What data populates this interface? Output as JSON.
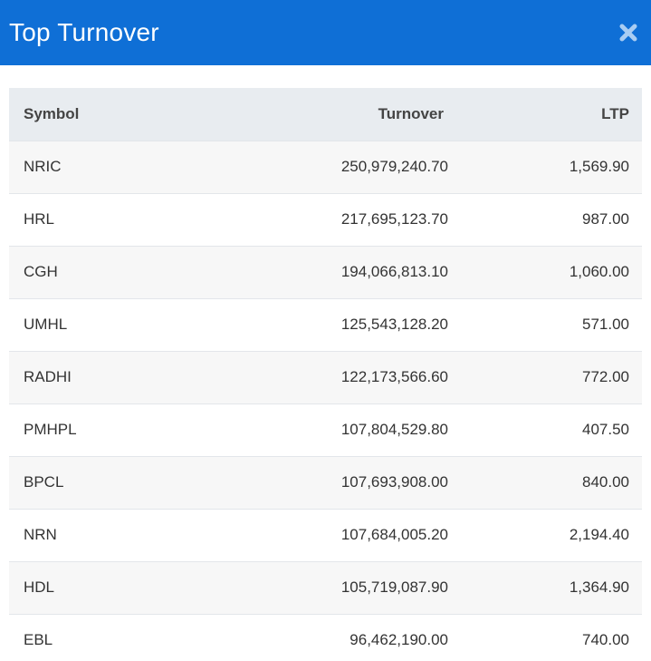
{
  "header": {
    "title": "Top Turnover",
    "close_icon": "close-icon"
  },
  "table": {
    "columns": [
      "Symbol",
      "Turnover",
      "LTP"
    ],
    "rows": [
      {
        "symbol": "NRIC",
        "turnover": "250,979,240.70",
        "ltp": "1,569.90"
      },
      {
        "symbol": "HRL",
        "turnover": "217,695,123.70",
        "ltp": "987.00"
      },
      {
        "symbol": "CGH",
        "turnover": "194,066,813.10",
        "ltp": "1,060.00"
      },
      {
        "symbol": "UMHL",
        "turnover": "125,543,128.20",
        "ltp": "571.00"
      },
      {
        "symbol": "RADHI",
        "turnover": "122,173,566.60",
        "ltp": "772.00"
      },
      {
        "symbol": "PMHPL",
        "turnover": "107,804,529.80",
        "ltp": "407.50"
      },
      {
        "symbol": "BPCL",
        "turnover": "107,693,908.00",
        "ltp": "840.00"
      },
      {
        "symbol": "NRN",
        "turnover": "107,684,005.20",
        "ltp": "2,194.40"
      },
      {
        "symbol": "HDL",
        "turnover": "105,719,087.90",
        "ltp": "1,364.90"
      },
      {
        "symbol": "EBL",
        "turnover": "96,462,190.00",
        "ltp": "740.00"
      }
    ]
  },
  "colors": {
    "header_bg": "#0f6fd6",
    "header_text": "#ffffff",
    "close_icon": "#9ec6f0",
    "table_head_bg": "#e8ecf0",
    "row_odd_bg": "#f7f7f7",
    "row_even_bg": "#ffffff"
  }
}
